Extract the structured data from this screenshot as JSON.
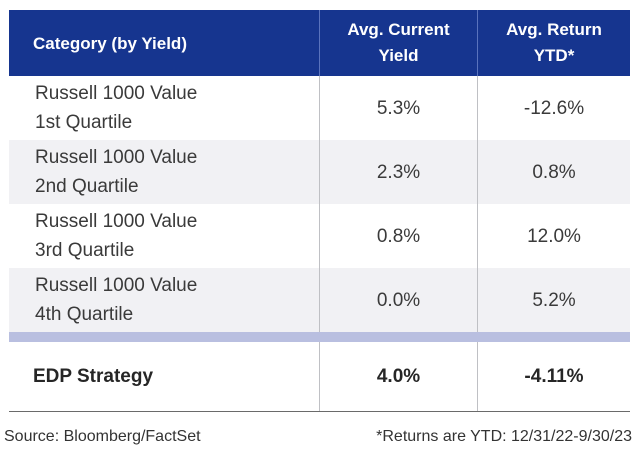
{
  "table": {
    "headers": {
      "category": "Category (by Yield)",
      "yield_line1": "Avg. Current",
      "yield_line2": "Yield",
      "return_line1": "Avg. Return",
      "return_line2": "YTD*"
    },
    "rows": [
      {
        "name_line1": "Russell 1000 Value",
        "name_line2": "1st Quartile",
        "yield": "5.3%",
        "return": "-12.6%"
      },
      {
        "name_line1": "Russell 1000 Value",
        "name_line2": "2nd Quartile",
        "yield": "2.3%",
        "return": "0.8%"
      },
      {
        "name_line1": "Russell 1000 Value",
        "name_line2": "3rd Quartile",
        "yield": "0.8%",
        "return": "12.0%"
      },
      {
        "name_line1": "Russell 1000 Value",
        "name_line2": "4th Quartile",
        "yield": "0.0%",
        "return": "5.2%"
      }
    ],
    "summary": {
      "name": "EDP Strategy",
      "yield": "4.0%",
      "return": "-4.11%"
    }
  },
  "footer": {
    "source": "Source: Bloomberg/FactSet",
    "note": "*Returns are YTD: 12/31/22-9/30/23"
  },
  "colors": {
    "header_bg": "#16358f",
    "divider": "#b9bfe0",
    "shaded_row": "#f1f1f4"
  }
}
